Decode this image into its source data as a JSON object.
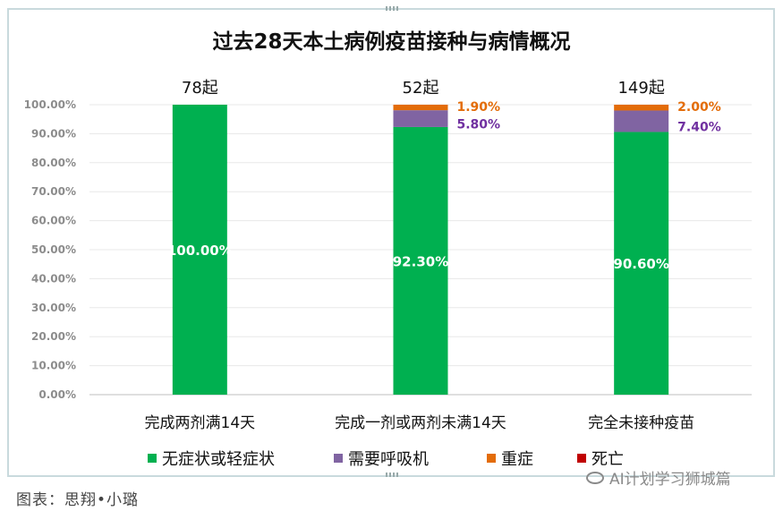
{
  "chart_data": {
    "type": "bar",
    "stacked": true,
    "title": "过去28天本土病例疫苗接种与病情概况",
    "categories": [
      "完成两剂满14天",
      "完成一剂或两剂未满14天",
      "完全未接种疫苗"
    ],
    "totals": [
      "78起",
      "52起",
      "149起"
    ],
    "series": [
      {
        "name": "无症状或轻症状",
        "color": "#00b050",
        "values": [
          100.0,
          92.3,
          90.6
        ],
        "labels": [
          "100.00%",
          "92.30%",
          "90.60%"
        ],
        "label_color": "#ffffff"
      },
      {
        "name": "需要呼吸机",
        "color": "#8064a2",
        "values": [
          0,
          5.8,
          7.4
        ],
        "labels": [
          "",
          "5.80%",
          "7.40%"
        ],
        "label_color": "#7030a0"
      },
      {
        "name": "重症",
        "color": "#e36c09",
        "values": [
          0,
          1.9,
          2.0
        ],
        "labels": [
          "",
          "1.90%",
          "2.00%"
        ],
        "label_color": "#e36c09"
      },
      {
        "name": "死亡",
        "color": "#c00000",
        "values": [
          0,
          0,
          0
        ],
        "labels": [
          "",
          "",
          ""
        ],
        "label_color": "#c00000"
      }
    ],
    "yticks": [
      "0.00%",
      "10.00%",
      "20.00%",
      "30.00%",
      "40.00%",
      "50.00%",
      "60.00%",
      "70.00%",
      "80.00%",
      "90.00%",
      "100.00%"
    ],
    "ylim": [
      0,
      100
    ],
    "grid": true,
    "legend_position": "bottom"
  },
  "caption": "图表：思翔•小璐",
  "watermark": "AI计划学习狮城篇"
}
